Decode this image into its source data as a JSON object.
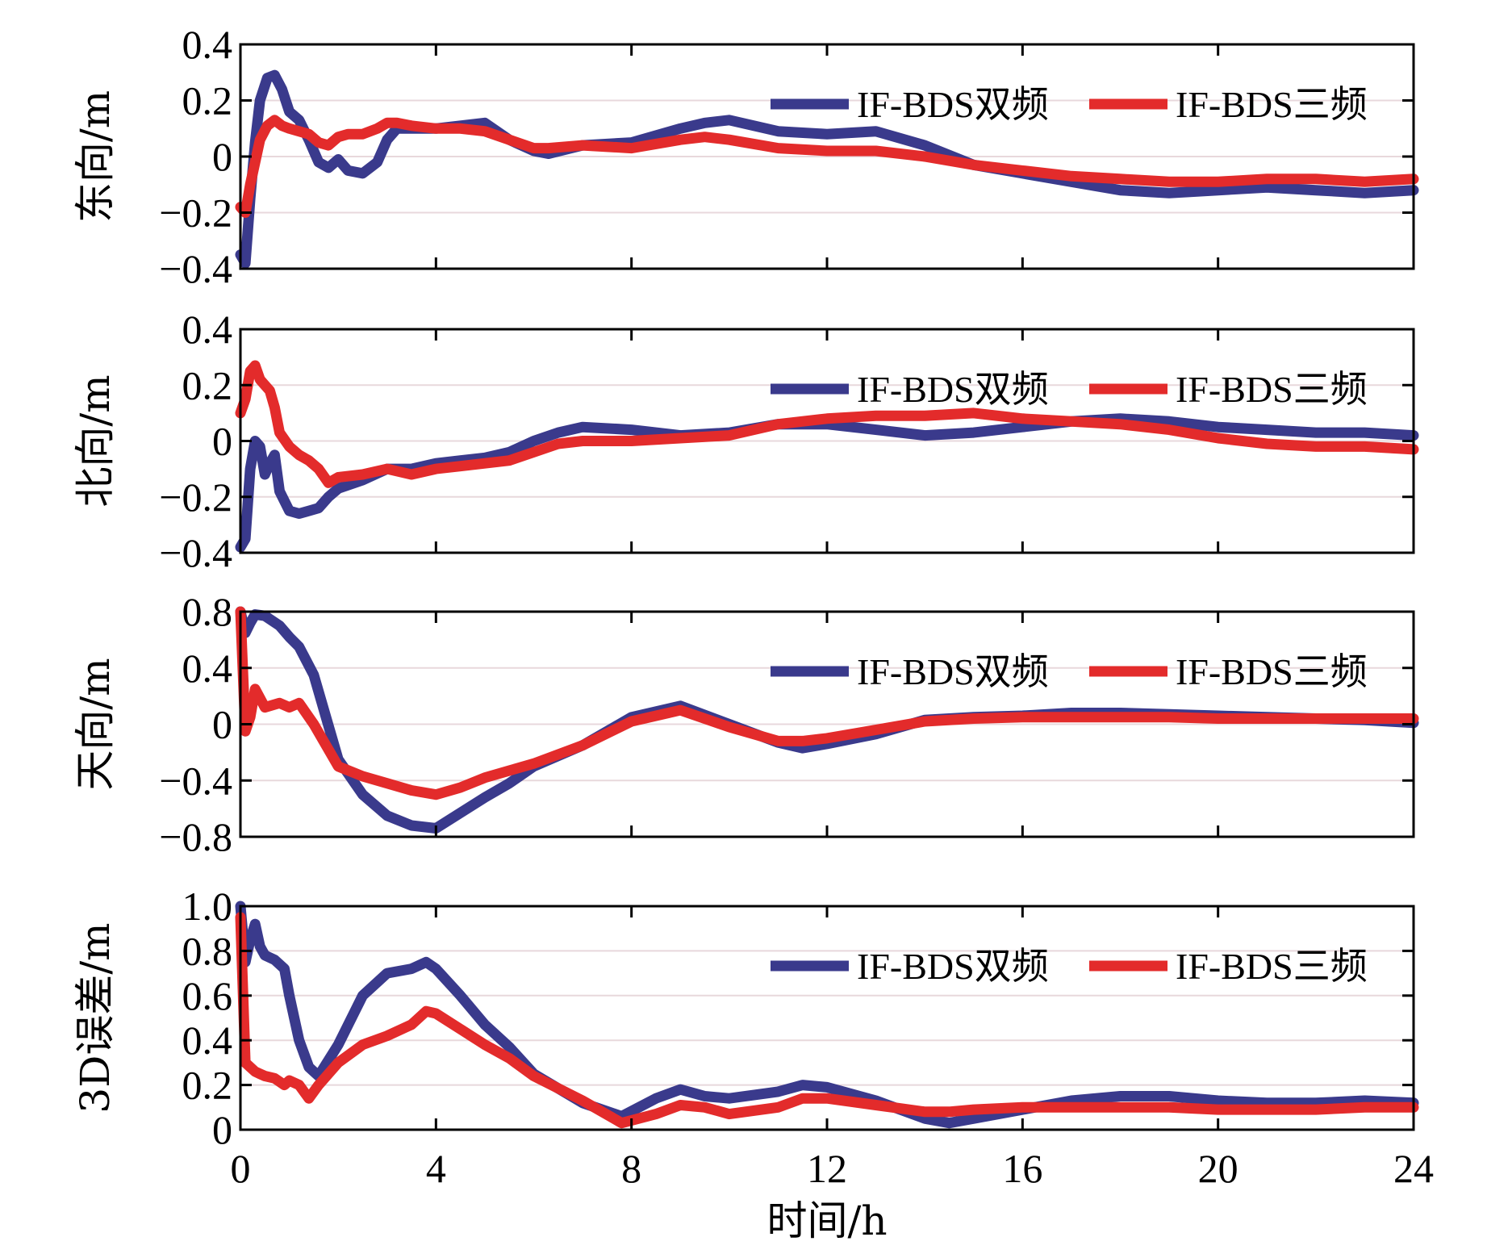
{
  "xlabel": "时间/h",
  "chart_data": [
    {
      "type": "line",
      "ylabel": "东向/m",
      "xlim": [
        0,
        24
      ],
      "ylim": [
        -0.4,
        0.4
      ],
      "xticks": [
        "0",
        "4",
        "8",
        "12",
        "16",
        "20",
        "24"
      ],
      "yticks": [
        "-0.4",
        "-0.2",
        "0",
        "0.2",
        "0.4"
      ],
      "grid": true,
      "legend": "top-right",
      "x": [
        0,
        0.1,
        0.2,
        0.3,
        0.4,
        0.55,
        0.7,
        0.85,
        1.0,
        1.2,
        1.4,
        1.6,
        1.8,
        2.0,
        2.2,
        2.5,
        2.8,
        3.0,
        3.2,
        3.5,
        4.0,
        4.5,
        5.0,
        5.5,
        6.0,
        6.3,
        7.0,
        8.0,
        9.0,
        9.5,
        10.0,
        11.0,
        12.0,
        13.0,
        14.0,
        15.0,
        16.0,
        17.0,
        18.0,
        19.0,
        20.0,
        21.0,
        22.0,
        23.0,
        24.0
      ],
      "series": [
        {
          "name": "IF-BDS双频",
          "color": "#3a3a8c",
          "values": [
            -0.35,
            -0.38,
            -0.15,
            0.05,
            0.2,
            0.28,
            0.29,
            0.24,
            0.16,
            0.13,
            0.06,
            -0.02,
            -0.04,
            -0.01,
            -0.05,
            -0.06,
            -0.02,
            0.06,
            0.1,
            0.1,
            0.1,
            0.11,
            0.12,
            0.06,
            0.02,
            0.01,
            0.04,
            0.05,
            0.1,
            0.12,
            0.13,
            0.09,
            0.08,
            0.09,
            0.04,
            -0.03,
            -0.06,
            -0.09,
            -0.12,
            -0.13,
            -0.12,
            -0.11,
            -0.12,
            -0.13,
            -0.12
          ]
        },
        {
          "name": "IF-BDS三频",
          "color": "#e32b2b",
          "values": [
            -0.18,
            -0.2,
            -0.1,
            -0.02,
            0.06,
            0.11,
            0.13,
            0.11,
            0.1,
            0.09,
            0.08,
            0.05,
            0.04,
            0.07,
            0.08,
            0.08,
            0.1,
            0.12,
            0.12,
            0.11,
            0.1,
            0.1,
            0.09,
            0.06,
            0.03,
            0.03,
            0.04,
            0.03,
            0.06,
            0.07,
            0.06,
            0.03,
            0.02,
            0.02,
            0.0,
            -0.03,
            -0.05,
            -0.07,
            -0.08,
            -0.09,
            -0.09,
            -0.08,
            -0.08,
            -0.09,
            -0.08
          ]
        }
      ]
    },
    {
      "type": "line",
      "ylabel": "北向/m",
      "xlim": [
        0,
        24
      ],
      "ylim": [
        -0.4,
        0.4
      ],
      "xticks": [
        "0",
        "4",
        "8",
        "12",
        "16",
        "20",
        "24"
      ],
      "yticks": [
        "-0.4",
        "-0.2",
        "0",
        "0.2",
        "0.4"
      ],
      "grid": true,
      "legend": "top-right",
      "x": [
        0,
        0.1,
        0.2,
        0.3,
        0.4,
        0.5,
        0.6,
        0.7,
        0.8,
        1.0,
        1.2,
        1.4,
        1.6,
        1.8,
        2.0,
        2.5,
        3.0,
        3.5,
        4.0,
        4.5,
        5.0,
        5.5,
        6.0,
        6.5,
        7.0,
        8.0,
        9.0,
        10.0,
        11.0,
        12.0,
        13.0,
        14.0,
        15.0,
        16.0,
        17.0,
        18.0,
        19.0,
        20.0,
        21.0,
        22.0,
        23.0,
        24.0
      ],
      "series": [
        {
          "name": "IF-BDS双频",
          "color": "#3a3a8c",
          "values": [
            -0.38,
            -0.35,
            -0.1,
            0.0,
            -0.02,
            -0.12,
            -0.08,
            -0.05,
            -0.18,
            -0.25,
            -0.26,
            -0.25,
            -0.24,
            -0.2,
            -0.17,
            -0.14,
            -0.1,
            -0.1,
            -0.08,
            -0.07,
            -0.06,
            -0.04,
            -0.0,
            0.03,
            0.05,
            0.04,
            0.02,
            0.03,
            0.06,
            0.06,
            0.04,
            0.02,
            0.03,
            0.05,
            0.07,
            0.08,
            0.07,
            0.05,
            0.04,
            0.03,
            0.03,
            0.02
          ]
        },
        {
          "name": "IF-BDS三频",
          "color": "#e32b2b",
          "values": [
            0.1,
            0.15,
            0.25,
            0.27,
            0.22,
            0.2,
            0.18,
            0.12,
            0.03,
            -0.02,
            -0.05,
            -0.07,
            -0.1,
            -0.15,
            -0.13,
            -0.12,
            -0.1,
            -0.12,
            -0.1,
            -0.09,
            -0.08,
            -0.07,
            -0.04,
            -0.01,
            -0.0,
            0.0,
            0.01,
            0.02,
            0.06,
            0.08,
            0.09,
            0.09,
            0.1,
            0.08,
            0.07,
            0.06,
            0.04,
            0.01,
            -0.01,
            -0.02,
            -0.02,
            -0.03
          ]
        }
      ]
    },
    {
      "type": "line",
      "ylabel": "天向/m",
      "xlim": [
        0,
        24
      ],
      "ylim": [
        -0.8,
        0.8
      ],
      "xticks": [
        "0",
        "4",
        "8",
        "12",
        "16",
        "20",
        "24"
      ],
      "yticks": [
        "-0.8",
        "-0.4",
        "0",
        "0.4",
        "0.8"
      ],
      "grid": true,
      "legend": "top-right",
      "x": [
        0,
        0.1,
        0.2,
        0.3,
        0.5,
        0.8,
        1.0,
        1.2,
        1.5,
        2.0,
        2.5,
        3.0,
        3.5,
        4.0,
        4.5,
        5.0,
        5.5,
        6.0,
        7.0,
        8.0,
        9.0,
        10.0,
        11.0,
        11.5,
        12.0,
        13.0,
        14.0,
        15.0,
        16.0,
        17.0,
        18.0,
        19.0,
        20.0,
        21.0,
        22.0,
        23.0,
        24.0
      ],
      "series": [
        {
          "name": "IF-BDS双频",
          "color": "#3a3a8c",
          "values": [
            0.8,
            0.65,
            0.72,
            0.78,
            0.77,
            0.7,
            0.62,
            0.55,
            0.35,
            -0.25,
            -0.5,
            -0.65,
            -0.72,
            -0.74,
            -0.63,
            -0.52,
            -0.42,
            -0.3,
            -0.15,
            0.05,
            0.13,
            0.0,
            -0.13,
            -0.17,
            -0.14,
            -0.07,
            0.03,
            0.05,
            0.06,
            0.08,
            0.08,
            0.07,
            0.06,
            0.05,
            0.04,
            0.03,
            0.01
          ]
        },
        {
          "name": "IF-BDS三频",
          "color": "#e32b2b",
          "values": [
            0.8,
            -0.05,
            0.05,
            0.25,
            0.12,
            0.15,
            0.12,
            0.15,
            0.0,
            -0.3,
            -0.37,
            -0.42,
            -0.47,
            -0.5,
            -0.45,
            -0.38,
            -0.33,
            -0.28,
            -0.15,
            0.02,
            0.1,
            -0.02,
            -0.12,
            -0.12,
            -0.1,
            -0.04,
            0.02,
            0.04,
            0.05,
            0.05,
            0.05,
            0.05,
            0.04,
            0.04,
            0.04,
            0.04,
            0.04
          ]
        }
      ]
    },
    {
      "type": "line",
      "ylabel": "3D误差/m",
      "xlim": [
        0,
        24
      ],
      "ylim": [
        0,
        1.0
      ],
      "xticks": [
        "0",
        "4",
        "8",
        "12",
        "16",
        "20",
        "24"
      ],
      "yticks": [
        "0",
        "0.2",
        "0.4",
        "0.6",
        "0.8",
        "1.0"
      ],
      "grid": true,
      "legend": "top-right",
      "x": [
        0,
        0.1,
        0.2,
        0.3,
        0.4,
        0.5,
        0.7,
        0.9,
        1.0,
        1.2,
        1.4,
        1.6,
        2.0,
        2.5,
        3.0,
        3.5,
        3.8,
        4.0,
        4.5,
        5.0,
        5.5,
        6.0,
        7.0,
        7.8,
        8.5,
        9.0,
        9.5,
        10.0,
        11.0,
        11.5,
        12.0,
        13.0,
        14.0,
        14.5,
        15.0,
        16.0,
        17.0,
        18.0,
        19.0,
        20.0,
        21.0,
        22.0,
        23.0,
        24.0
      ],
      "series": [
        {
          "name": "IF-BDS双频",
          "color": "#3a3a8c",
          "values": [
            1.0,
            0.75,
            0.85,
            0.92,
            0.82,
            0.78,
            0.76,
            0.72,
            0.6,
            0.4,
            0.28,
            0.24,
            0.38,
            0.6,
            0.7,
            0.72,
            0.75,
            0.72,
            0.6,
            0.47,
            0.37,
            0.25,
            0.12,
            0.06,
            0.14,
            0.18,
            0.15,
            0.14,
            0.17,
            0.2,
            0.19,
            0.13,
            0.05,
            0.03,
            0.05,
            0.09,
            0.13,
            0.15,
            0.15,
            0.13,
            0.12,
            0.12,
            0.13,
            0.12
          ]
        },
        {
          "name": "IF-BDS三频",
          "color": "#e32b2b",
          "values": [
            0.95,
            0.3,
            0.28,
            0.26,
            0.25,
            0.24,
            0.23,
            0.2,
            0.22,
            0.2,
            0.14,
            0.2,
            0.3,
            0.38,
            0.42,
            0.47,
            0.53,
            0.52,
            0.45,
            0.38,
            0.32,
            0.24,
            0.13,
            0.03,
            0.07,
            0.11,
            0.1,
            0.07,
            0.1,
            0.14,
            0.14,
            0.11,
            0.08,
            0.08,
            0.09,
            0.1,
            0.1,
            0.1,
            0.1,
            0.09,
            0.09,
            0.09,
            0.1,
            0.1
          ]
        }
      ]
    }
  ]
}
